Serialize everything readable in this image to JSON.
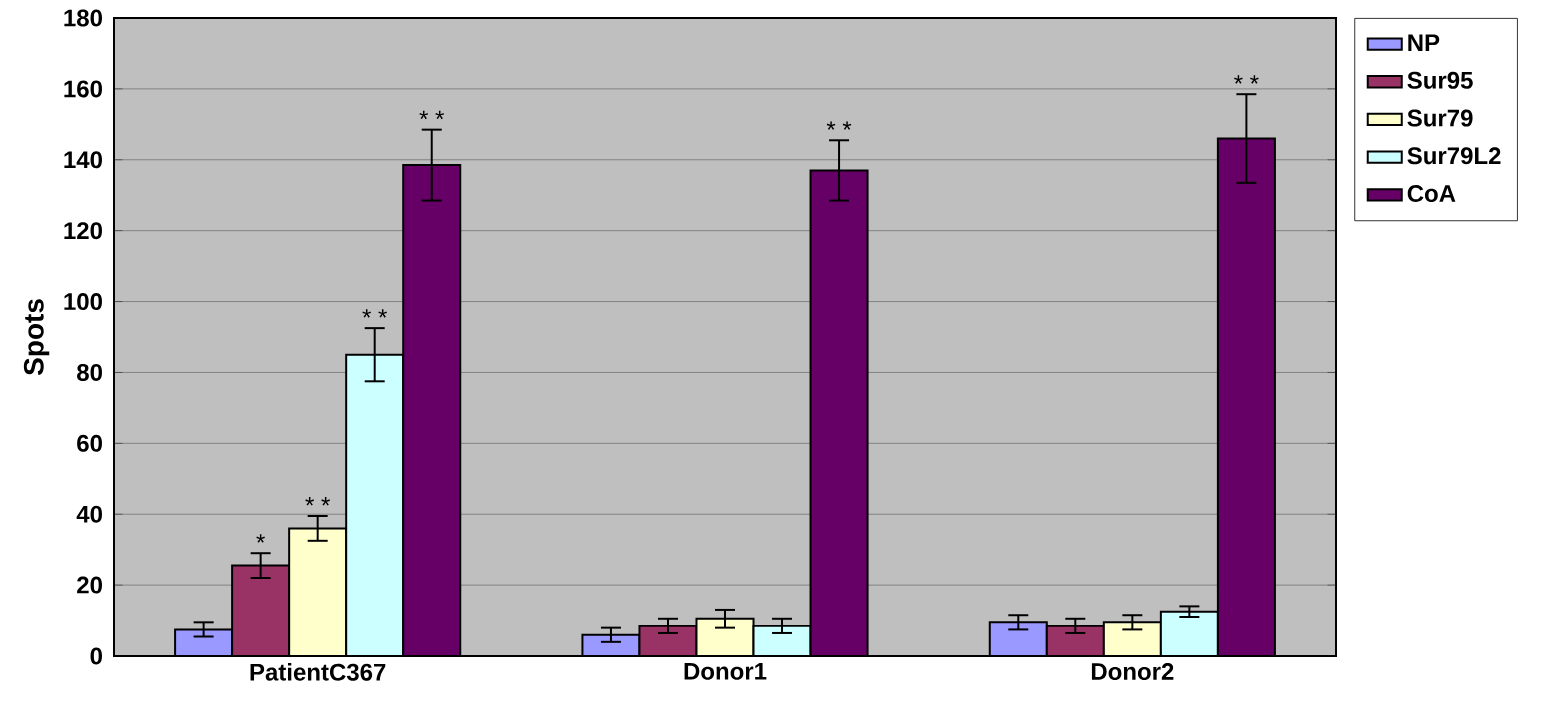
{
  "chart_data": {
    "type": "bar",
    "ylabel": "Spots",
    "categories": [
      "PatientC367",
      "Donor1",
      "Donor2"
    ],
    "ylim": [
      0,
      180
    ],
    "yticks": [
      0,
      20,
      40,
      60,
      80,
      100,
      120,
      140,
      160,
      180
    ],
    "grid": "y",
    "legend": "right",
    "series": [
      {
        "name": "NP",
        "color": "#9999ff",
        "values": [
          7.5,
          6,
          9.5
        ],
        "errors": [
          2,
          2,
          2
        ],
        "value_labels": [
          null,
          null,
          null
        ]
      },
      {
        "name": "Sur95",
        "color": "#993366",
        "values": [
          25.5,
          8.5,
          8.5
        ],
        "errors": [
          3.5,
          2,
          2
        ],
        "value_labels": [
          "*",
          null,
          null
        ]
      },
      {
        "name": "Sur79",
        "color": "#ffffcc",
        "values": [
          36,
          10.5,
          9.5
        ],
        "errors": [
          3.5,
          2.5,
          2
        ],
        "value_labels": [
          "* *",
          null,
          null
        ]
      },
      {
        "name": "Sur79L2",
        "color": "#ccffff",
        "values": [
          85,
          8.5,
          12.5
        ],
        "errors": [
          7.5,
          2,
          1.5
        ],
        "value_labels": [
          "* *",
          null,
          null
        ]
      },
      {
        "name": "CoA",
        "color": "#660066",
        "values": [
          138.5,
          137,
          146
        ],
        "errors": [
          10,
          8.5,
          12.5
        ],
        "value_labels": [
          "* *",
          "* *",
          "* *"
        ]
      }
    ]
  }
}
